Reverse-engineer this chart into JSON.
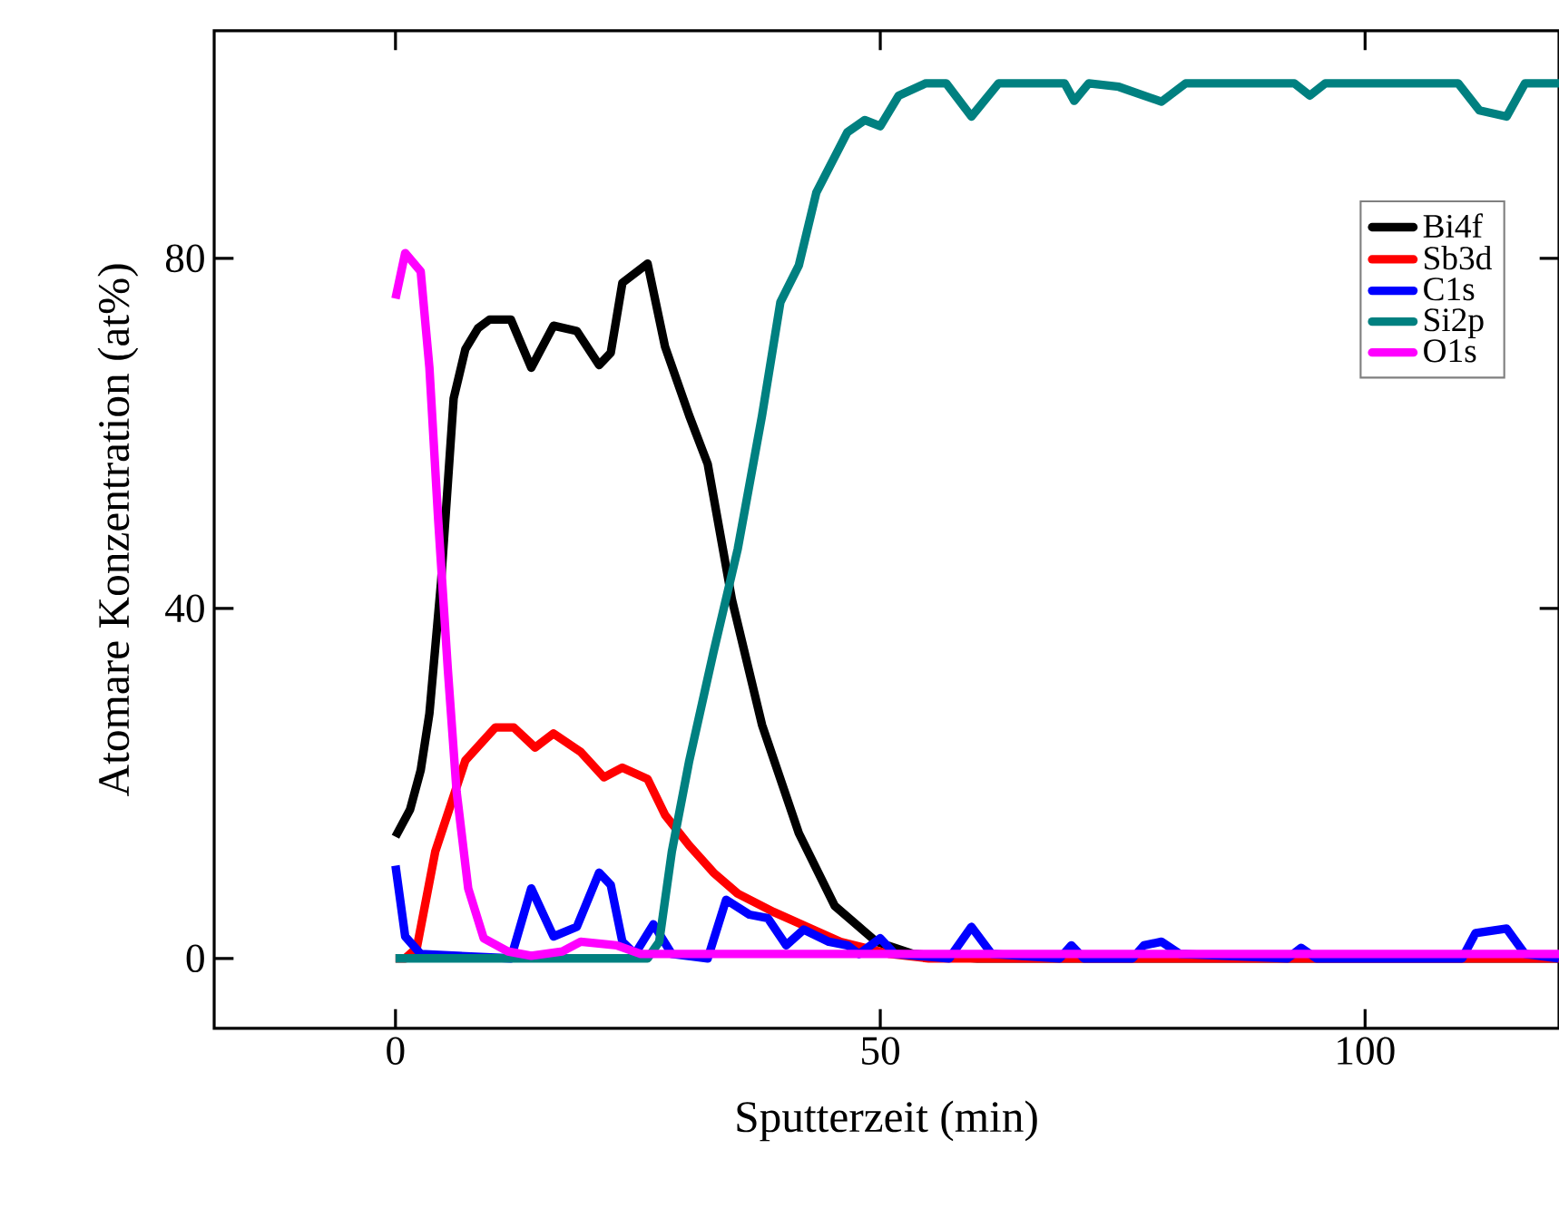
{
  "chart_data": {
    "type": "line",
    "xlabel": "Sputterzeit (min)",
    "ylabel": "Atomare Konzentration (at%)",
    "xlim": [
      -18.7,
      120
    ],
    "ylim": [
      -8,
      106
    ],
    "xticks": [
      0,
      50,
      100
    ],
    "yticks": [
      0,
      40,
      80
    ],
    "grid": false,
    "legend": "top right",
    "marker": "none",
    "line_style": "solid",
    "series": [
      {
        "name": "Bi4f",
        "color": "#000000",
        "x": [
          0,
          1.5,
          2.6,
          3.5,
          4.7,
          6,
          7.2,
          8.5,
          9.7,
          11.9,
          14,
          16.3,
          18.7,
          21,
          22.2,
          23.4,
          26,
          27.8,
          30.3,
          32.2,
          34.7,
          37.8,
          41.6,
          45.3,
          49.6,
          53.4,
          60,
          120
        ],
        "values": [
          13.9,
          17,
          21.5,
          28,
          43,
          64,
          69.6,
          72,
          73,
          73,
          67.5,
          72.3,
          71.7,
          67.8,
          69.2,
          77.2,
          79.4,
          69.9,
          62,
          56.5,
          41,
          26.7,
          14.3,
          6,
          1.9,
          0.5,
          0,
          0
        ]
      },
      {
        "name": "Sb3d",
        "color": "#ff0000",
        "x": [
          0,
          1,
          2.2,
          4.1,
          7.2,
          10.3,
          12.2,
          14.4,
          16.3,
          19.1,
          21.5,
          23.4,
          26,
          27.8,
          30.3,
          32.8,
          35.3,
          39,
          45.9,
          51,
          55,
          120
        ],
        "values": [
          0,
          0,
          1.2,
          12.2,
          22.6,
          26.4,
          26.4,
          24.1,
          25.7,
          23.6,
          20.7,
          21.8,
          20.5,
          16.4,
          12.9,
          9.8,
          7.4,
          5.3,
          1.9,
          0.5,
          0,
          0
        ]
      },
      {
        "name": "C1s",
        "color": "#0000ff",
        "x": [
          0,
          1,
          2.6,
          11.9,
          14,
          16.3,
          18.7,
          21,
          22.2,
          23.4,
          24.7,
          26.6,
          28.5,
          32.2,
          34.1,
          36.5,
          38.4,
          40.3,
          42.1,
          44.7,
          46.6,
          47.8,
          50,
          51.5,
          57.1,
          59.4,
          61.5,
          68.5,
          69.7,
          71,
          76,
          77.2,
          79,
          80.9,
          92,
          93.4,
          95,
          110,
          111.4,
          114.6,
          116.5,
          120
        ],
        "values": [
          10.6,
          2.5,
          0.5,
          0,
          8,
          2.5,
          3.6,
          9.8,
          8.4,
          1.9,
          0.5,
          3.9,
          0.5,
          0,
          6.7,
          5,
          4.6,
          1.5,
          3.3,
          1.9,
          1.5,
          0.5,
          2.3,
          0.5,
          0,
          3.6,
          0.5,
          0,
          1.5,
          0,
          0,
          1.5,
          1.9,
          0.5,
          0,
          1.2,
          0,
          0,
          2.9,
          3.4,
          0.5,
          0
        ]
      },
      {
        "name": "Si2p",
        "color": "#008080",
        "x": [
          0,
          26,
          27.2,
          28.5,
          30.3,
          32.8,
          35.3,
          37.8,
          39.7,
          41.6,
          43.4,
          46.6,
          48.4,
          50,
          51.9,
          54.7,
          56.8,
          59.4,
          62.2,
          69,
          70,
          71.5,
          74.6,
          79,
          81.5,
          92.7,
          94.3,
          95.9,
          109.6,
          111.8,
          114.6,
          116.5,
          120
        ],
        "values": [
          0,
          0,
          1.9,
          12.2,
          22.6,
          35,
          46.8,
          62,
          75,
          79.2,
          87.5,
          94.4,
          95.8,
          95.1,
          98.6,
          100,
          100,
          96.2,
          100,
          100,
          98,
          100,
          99.6,
          97.9,
          100,
          100,
          98.6,
          100,
          100,
          96.9,
          96.2,
          100,
          100
        ]
      },
      {
        "name": "O1s",
        "color": "#ff00ff",
        "x": [
          0,
          1,
          2.6,
          3.5,
          4.4,
          5.4,
          6.3,
          7.5,
          9.1,
          11.6,
          14,
          17.2,
          19.1,
          22.8,
          25.3,
          120
        ],
        "values": [
          75.4,
          80.6,
          78.5,
          67.5,
          50.2,
          33,
          19.1,
          8,
          2.3,
          0.8,
          0.3,
          0.8,
          1.9,
          1.5,
          0.5,
          0.5
        ]
      }
    ]
  }
}
